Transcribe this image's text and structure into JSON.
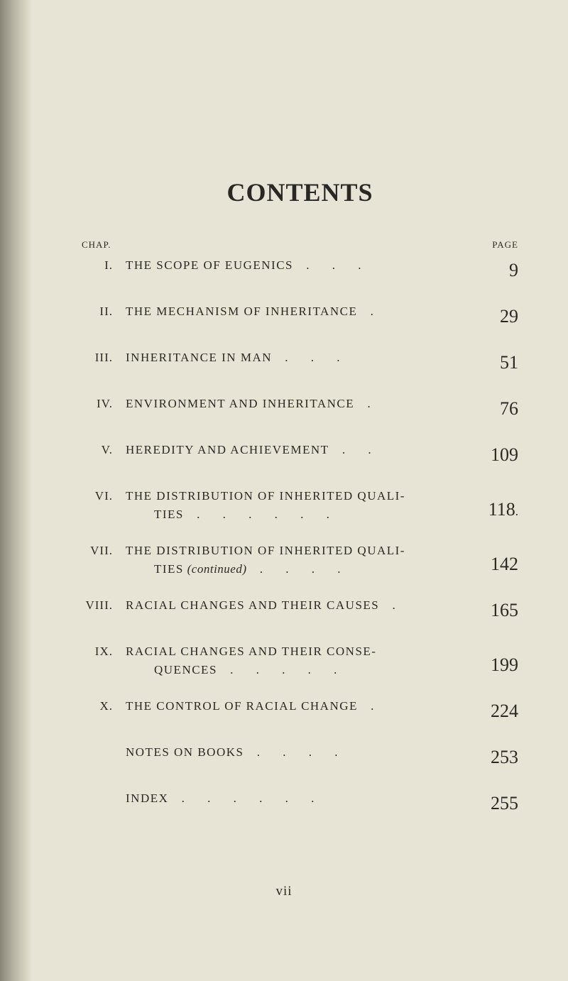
{
  "page": {
    "title": "CONTENTS",
    "header_chap": "CHAP.",
    "header_page": "PAGE",
    "folio": "vii",
    "background_color": "#e8e4d5",
    "text_color": "#2a2825",
    "title_fontsize": 36,
    "body_fontsize": 17,
    "page_num_fontsize": 26
  },
  "entries": [
    {
      "num": "I.",
      "title": "THE SCOPE OF EUGENICS",
      "dots": " .   .   .",
      "page": "9"
    },
    {
      "num": "II.",
      "title": "THE MECHANISM OF INHERITANCE",
      "dots": "   .",
      "page": "29"
    },
    {
      "num": "III.",
      "title": "INHERITANCE IN MAN",
      "dots": "   .   .   .",
      "page": "51"
    },
    {
      "num": "IV.",
      "title": "ENVIRONMENT AND INHERITANCE",
      "dots": "   .",
      "page": "76"
    },
    {
      "num": "V.",
      "title": "HEREDITY AND ACHIEVEMENT",
      "dots": "   .   .",
      "page": "109"
    },
    {
      "num": "VI.",
      "title_line1": "THE DISTRIBUTION OF INHERITED QUALI-",
      "title_line2": "TIES",
      "dots": "   .   .   .   .   .   .",
      "page": "118",
      "trailing": "."
    },
    {
      "num": "VII.",
      "title_line1": "THE DISTRIBUTION OF INHERITED QUALI-",
      "title_line2": "TIES",
      "continued": " (continued)",
      "dots": "   .   .   .   .",
      "page": "142"
    },
    {
      "num": "VIII.",
      "title": "RACIAL CHANGES AND THEIR CAUSES",
      "dots": "  .",
      "page": "165"
    },
    {
      "num": "IX.",
      "title_line1": "RACIAL CHANGES AND THEIR CONSE-",
      "title_line2": "QUENCES",
      "dots": "   .   .   .   .   .",
      "page": "199"
    },
    {
      "num": "X.",
      "title": "THE CONTROL OF RACIAL CHANGE",
      "dots": "   .",
      "page": "224"
    },
    {
      "num": "",
      "title": "NOTES ON BOOKS",
      "dots": "   .   .   .   .",
      "page": "253"
    },
    {
      "num": "",
      "title": "INDEX",
      "dots": "   .   .   .   .   .   .",
      "page": "255"
    }
  ]
}
